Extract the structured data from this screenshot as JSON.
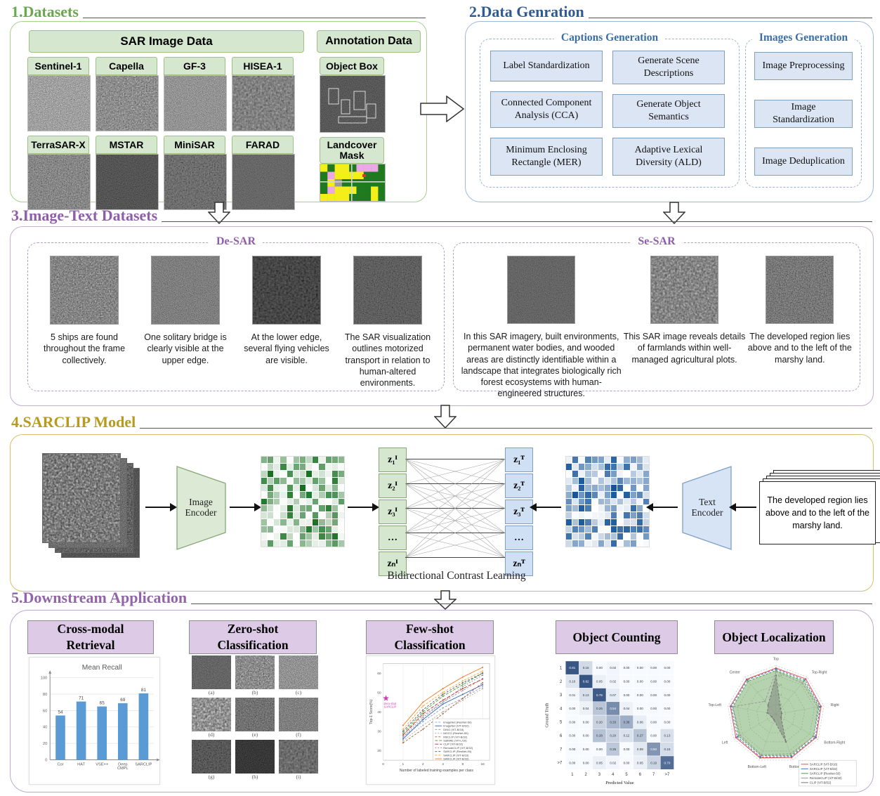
{
  "sections": {
    "datasets": {
      "title": "1.Datasets",
      "sar_header": "SAR Image Data",
      "annotation_header": "Annotation Data",
      "sar_sources": [
        "Sentinel-1",
        "Capella",
        "GF-3",
        "HISEA-1",
        "TerraSAR-X",
        "MSTAR",
        "MiniSAR",
        "FARAD"
      ],
      "annotation_items": [
        "Object Box",
        "Landcover Mask"
      ],
      "accent_color": "#6aa84f"
    },
    "data_generation": {
      "title": "2.Data Genration",
      "captions_label": "Captions Generation",
      "images_label": "Images Generation",
      "caption_steps": [
        "Label Standardization",
        "Generate Scene Descriptions",
        "Connected Component Analysis (CCA)",
        "Generate Object Semantics",
        "Minimum Enclosing Rectangle (MER)",
        "Adaptive Lexical Diversity (ALD)"
      ],
      "image_steps": [
        "Image Preprocessing",
        "Image Standardization",
        "Image Deduplication"
      ],
      "accent_color": "#2f5b94"
    },
    "image_text": {
      "title": "3.Image-Text Datasets",
      "desar_label": "De-SAR",
      "sesar_label": "Se-SAR",
      "desar_captions": [
        "5 ships are found throughout the frame collectively.",
        "One solitary bridge is clearly visible at the upper edge.",
        "At the lower edge, several flying vehicles are visible.",
        "The SAR visualization outlines motorized transport in relation to human-altered environments."
      ],
      "sesar_captions": [
        "In this SAR imagery, built environments, permanent water bodies, and wooded areas are distinctly identifiable within a landscape that integrates biologically rich forest ecosystems with human-engineered structures.",
        "This SAR image reveals details of farmlands within well-managed agricultural plots.",
        "The developed region lies above and to the left of the marshy land."
      ],
      "accent_color": "#8e5ea8"
    },
    "model": {
      "title": "4.SARCLIP Model",
      "image_encoder_label": "Image Encoder",
      "text_encoder_label": "Text Encoder",
      "caption": "Bidirectional Contrast Learning",
      "image_tokens": [
        "z₁ᴵ",
        "z₂ᴵ",
        "z₃ᴵ",
        "…",
        "zₙᴵ"
      ],
      "text_tokens": [
        "z₁ᵀ",
        "z₂ᵀ",
        "z₃ᵀ",
        "…",
        "zₙᵀ"
      ],
      "sample_text": "The developed region lies above and to the left of the marshy land.",
      "accent_color": "#b79b20"
    },
    "downstream": {
      "title": "5.Downstream Application",
      "panels": [
        "Cross-modal Retrieval",
        "Zero-shot Classification",
        "Few-shot Classification",
        "Object Counting",
        "Object Localization"
      ],
      "zero_shot_labels": [
        "(a)",
        "(b)",
        "(c)",
        "(d)",
        "(e)",
        "(f)",
        "(g)",
        "(h)",
        "(i)"
      ],
      "accent_color": "#9165a8"
    }
  },
  "chart_data": [
    {
      "type": "bar",
      "panel": "Cross-modal Retrieval",
      "title": "Mean Recall",
      "categories": [
        "Cor",
        "HAT",
        "VSE++",
        "Deep CMPL",
        "SARCLIP"
      ],
      "values": [
        54,
        71,
        65,
        69,
        81
      ],
      "ylim": [
        0,
        100
      ],
      "yticks": [
        0,
        20,
        40,
        60,
        80,
        100
      ],
      "bar_color": "#5b9bd5",
      "grid": true
    },
    {
      "type": "line",
      "panel": "Few-shot Classification",
      "xlabel": "Number of labeled training examples per class",
      "ylabel": "Top-1 Score(%)",
      "x": [
        1,
        2,
        4,
        8,
        16
      ],
      "xticks": [
        0,
        1,
        2,
        4,
        8,
        16
      ],
      "ylim": [
        15,
        65
      ],
      "zero_shot": {
        "label": "Zero-shot SARCLIP",
        "value": 47,
        "color": "#cc3fb0"
      },
      "legend_position": "lower right",
      "series": [
        {
          "name": "ImageNet (ResNet-50)",
          "color": "#8c9fce",
          "dash": "3,2",
          "values": [
            27,
            35,
            42,
            47,
            53
          ]
        },
        {
          "name": "ImageNet (ViT-B/32)",
          "color": "#2e5fc9",
          "dash": "",
          "values": [
            26,
            36,
            44,
            49,
            54
          ]
        },
        {
          "name": "DINO (ViT-B/16)",
          "color": "#9e9e9e",
          "dash": "3,2",
          "values": [
            28,
            38,
            45,
            51,
            57
          ]
        },
        {
          "name": "MOCO (ResNet-50)",
          "color": "#b0a8a0",
          "dash": "2,2",
          "values": [
            25,
            33,
            40,
            46,
            52
          ]
        },
        {
          "name": "MSCLIP (ViT-B/32)",
          "color": "#a5652e",
          "dash": "3,2",
          "values": [
            24,
            31,
            39,
            47,
            55
          ]
        },
        {
          "name": "SatMAE (ViT-L/16)",
          "color": "#3f9e3f",
          "dash": "4,2",
          "values": [
            29,
            40,
            48,
            54,
            60
          ]
        },
        {
          "name": "CLIP (ViT-B/32)",
          "color": "#cc2222",
          "dash": "5,2",
          "values": [
            28,
            39,
            46,
            52,
            57
          ]
        },
        {
          "name": "RemoteCLIP (ViT-B/32)",
          "color": "#8a8a8a",
          "dash": "2,2",
          "values": [
            27,
            37,
            45,
            53,
            59
          ]
        },
        {
          "name": "SARCLIP (ResNet-50)",
          "color": "#555555",
          "dash": "3,2",
          "values": [
            30,
            41,
            49,
            55,
            60
          ]
        },
        {
          "name": "SARCLIP (ViT-B/16)",
          "color": "#f2a93b",
          "dash": "3,2",
          "values": [
            31,
            43,
            50,
            56,
            61
          ]
        },
        {
          "name": "SARCLIP (ViT-B/32)",
          "color": "#f07820",
          "dash": "",
          "values": [
            33,
            45,
            52,
            58,
            63
          ]
        }
      ]
    },
    {
      "type": "heatmap",
      "panel": "Object Counting",
      "xlabel": "Predicted Value",
      "ylabel": "Ground Truth",
      "labels": [
        "1",
        "2",
        "3",
        "4",
        "5",
        "6",
        "7",
        ">7"
      ],
      "values": [
        [
          0.81,
          0.16,
          0.0,
          0.02,
          0.0,
          0.0,
          0.0,
          0.0
        ],
        [
          0.1,
          0.82,
          0.05,
          0.02,
          0.0,
          0.0,
          0.0,
          0.0
        ],
        [
          0.01,
          0.13,
          0.79,
          0.07,
          0.0,
          0.0,
          0.0,
          0.0
        ],
        [
          0.0,
          0.04,
          0.26,
          0.54,
          0.04,
          0.0,
          0.0,
          0.0
        ],
        [
          0.0,
          0.0,
          0.2,
          0.33,
          0.38,
          0.06,
          0.0,
          0.0
        ],
        [
          0.0,
          0.0,
          0.28,
          0.2,
          0.12,
          0.27,
          0.0,
          0.13
        ],
        [
          0.0,
          0.0,
          0.0,
          0.25,
          0.0,
          0.09,
          0.5,
          0.15
        ],
        [
          0.0,
          0.0,
          0.05,
          0.02,
          0.0,
          0.05,
          0.19,
          0.7
        ]
      ]
    },
    {
      "type": "radar",
      "panel": "Object Localization",
      "categories": [
        "Top",
        "Top-Right",
        "Right",
        "Bottom-Right",
        "Bottom",
        "Bottom-Left",
        "Left",
        "Top-Left",
        "Center"
      ],
      "rticks": [
        0.2,
        0.4,
        0.6,
        0.8
      ],
      "series": [
        {
          "name": "SARCLIP (ViT-B/16)",
          "color": "#e05252",
          "fill": false,
          "values": [
            0.95,
            0.95,
            0.94,
            0.95,
            0.94,
            0.95,
            0.95,
            0.95,
            0.94
          ]
        },
        {
          "name": "SARCLIP (ViT-B/32)",
          "color": "#4472c4",
          "fill": false,
          "values": [
            0.93,
            0.92,
            0.92,
            0.93,
            0.92,
            0.93,
            0.92,
            0.93,
            0.92
          ]
        },
        {
          "name": "SARCLIP (ResNet-50)",
          "color": "#5a9e4b",
          "fill": true,
          "values": [
            0.9,
            0.89,
            0.9,
            0.89,
            0.9,
            0.9,
            0.89,
            0.9,
            0.89
          ]
        },
        {
          "name": "RemoteCLIP (ViT-B/32)",
          "color": "#999999",
          "fill": false,
          "values": [
            0.88,
            0.84,
            0.87,
            0.9,
            0.86,
            0.88,
            0.85,
            0.9,
            0.35
          ]
        },
        {
          "name": "CLIP (ViT-B/32)",
          "color": "#777777",
          "fill": true,
          "values": [
            0.8,
            0.15,
            0.12,
            0.12,
            0.6,
            0.12,
            0.1,
            0.18,
            0.25
          ]
        }
      ]
    }
  ]
}
